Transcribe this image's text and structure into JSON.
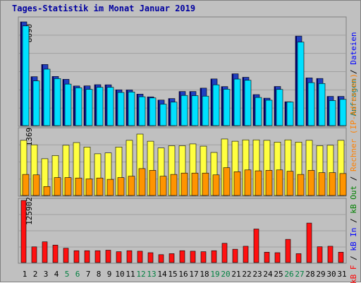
{
  "chart_data": {
    "type": "bar",
    "title": "Tages-Statistik im Monat Januar 2019",
    "categories": [
      "1",
      "2",
      "3",
      "4",
      "5",
      "6",
      "7",
      "8",
      "9",
      "10",
      "11",
      "12",
      "13",
      "14",
      "15",
      "16",
      "17",
      "18",
      "19",
      "20",
      "21",
      "22",
      "23",
      "24",
      "25",
      "26",
      "27",
      "28",
      "29",
      "30",
      "31"
    ],
    "weekend_days": [
      "5",
      "6",
      "12",
      "13",
      "19",
      "20",
      "26",
      "27"
    ],
    "panels": [
      {
        "ymax_label": "8690",
        "ymax": 8690,
        "series": [
          {
            "name": "Anfragen",
            "color": "#2040c0",
            "values": [
              8690,
              4100,
              5120,
              4120,
              3880,
              3320,
              3330,
              3430,
              3420,
              3000,
              2990,
              2640,
              2410,
              2140,
              2270,
              2860,
              2860,
              3140,
              3910,
              3270,
              4340,
              4050,
              2600,
              2300,
              3280,
              2000,
              7500,
              4000,
              3950,
              2450,
              2450
            ]
          },
          {
            "name": "Dateien",
            "color": "#00e0ff",
            "values": [
              8350,
              3750,
              4730,
              3940,
              3480,
              3170,
              3040,
              3210,
              3210,
              2780,
              2820,
              2420,
              2320,
              1800,
              1970,
              2530,
              2510,
              2470,
              3420,
              3050,
              3900,
              3800,
              2360,
              2130,
              3030,
              1980,
              7000,
              3600,
              3530,
              2100,
              2200
            ]
          }
        ]
      },
      {
        "ymax_label": "1369",
        "ymax": 1369,
        "series": [
          {
            "name": "Seiten",
            "color": "#ffff40",
            "values": [
              1230,
              1130,
              820,
              890,
              1120,
              1180,
              1080,
              930,
              950,
              1080,
              1230,
              1369,
              1210,
              1060,
              1110,
              1110,
              1150,
              1100,
              960,
              1260,
              1210,
              1240,
              1240,
              1230,
              1190,
              1240,
              1190,
              1230,
              1110,
              1120,
              1230
            ]
          },
          {
            "name": "Rechner (IP-Adressen)",
            "color": "#ff9400",
            "values": [
              470,
              460,
              200,
              400,
              400,
              390,
              370,
              390,
              360,
              400,
              430,
              600,
              560,
              430,
              470,
              500,
              500,
              500,
              460,
              620,
              530,
              570,
              550,
              560,
              570,
              540,
              470,
              560,
              510,
              510,
              490
            ]
          }
        ]
      },
      {
        "ymax_label": "125902",
        "ymax": 125902,
        "series": [
          {
            "name": "kB F",
            "color": "#ff1010",
            "values": [
              125902,
              31800,
              42000,
              35400,
              29000,
              24000,
              24000,
              24000,
              25000,
              22000,
              24000,
              23000,
              20000,
              16000,
              18000,
              24000,
              23000,
              22000,
              24000,
              39000,
              27000,
              33000,
              68000,
              21000,
              20000,
              47000,
              18000,
              80000,
              32000,
              33000,
              21000
            ]
          }
        ]
      }
    ],
    "right_legend_top": [
      {
        "text": "Anfragen",
        "color": "#008080"
      },
      {
        "text": " / ",
        "color": "#000000"
      },
      {
        "text": "Dateien",
        "color": "#0000ff"
      }
    ],
    "right_legend_bottom": [
      {
        "text": "kB F",
        "color": "#ff0000"
      },
      {
        "text": " / ",
        "color": "#000000"
      },
      {
        "text": "kB In",
        "color": "#0000ff"
      },
      {
        "text": " / ",
        "color": "#000000"
      },
      {
        "text": "kB Out",
        "color": "#008000"
      },
      {
        "text": " / ",
        "color": "#000000"
      },
      {
        "text": "Rechner (IP-Adressen)",
        "color": "#ff8000"
      }
    ],
    "grid": true,
    "colors": {
      "frame_background": "#c0c0c0",
      "plot_background": "#c0c0c0",
      "gridline": "#a0a0a0",
      "title": "#0000a0",
      "weekday_label": "#000000",
      "weekend_label": "#008040"
    }
  }
}
